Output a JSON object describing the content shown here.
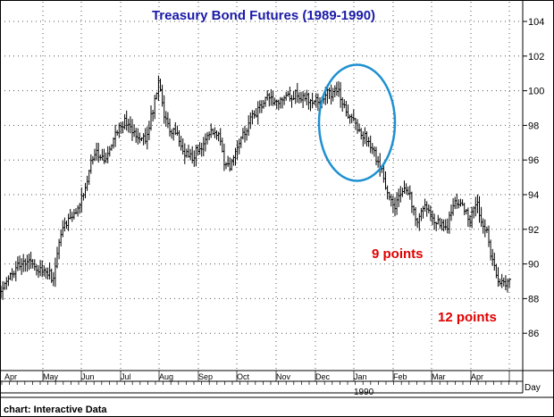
{
  "chart_data": {
    "type": "ohlc",
    "title": "Treasury Bond Futures (1989-1990)",
    "source_label": "chart: Interactive Data",
    "y_axis_unit_label": "Day",
    "ylim": [
      84,
      105
    ],
    "y_ticks": [
      86,
      88,
      90,
      92,
      94,
      96,
      98,
      100,
      102,
      104
    ],
    "x_tick_labels": [
      "Apr",
      "May",
      "Jun",
      "Jul",
      "Aug",
      "Sep",
      "Oct",
      "Nov",
      "Dec",
      "Jan",
      "Feb",
      "Mar",
      "Apr"
    ],
    "year_marker": "1990",
    "grid": true,
    "grid_style": "dotted",
    "annotations": [
      {
        "text": "9 points",
        "color": "#e00000"
      },
      {
        "text": "12 points",
        "color": "#e00000"
      }
    ],
    "highlight": {
      "shape": "ellipse",
      "color": "#1e90d0",
      "x_range": [
        "Dec",
        "Jan"
      ],
      "y_range": [
        94.8,
        101.5
      ]
    },
    "series": [
      {
        "price_path": [
          [
            0,
            88.6
          ],
          [
            10,
            89.2
          ],
          [
            22,
            90.0
          ],
          [
            35,
            90.2
          ],
          [
            45,
            89.6
          ],
          [
            55,
            89.5
          ],
          [
            60,
            89.0
          ],
          [
            64,
            90.8
          ],
          [
            72,
            92.3
          ],
          [
            85,
            92.8
          ],
          [
            95,
            94.3
          ],
          [
            105,
            96.5
          ],
          [
            115,
            96.2
          ],
          [
            120,
            96.0
          ],
          [
            128,
            97.6
          ],
          [
            140,
            98.2
          ],
          [
            152,
            97.5
          ],
          [
            162,
            97.2
          ],
          [
            172,
            99.0
          ],
          [
            178,
            100.5
          ],
          [
            183,
            98.6
          ],
          [
            190,
            97.6
          ],
          [
            198,
            97.5
          ],
          [
            205,
            96.5
          ],
          [
            215,
            96.2
          ],
          [
            225,
            96.8
          ],
          [
            235,
            97.8
          ],
          [
            245,
            97.3
          ],
          [
            250,
            96.0
          ],
          [
            257,
            95.5
          ],
          [
            265,
            96.8
          ],
          [
            275,
            97.8
          ],
          [
            283,
            98.5
          ],
          [
            292,
            99.0
          ],
          [
            300,
            99.8
          ],
          [
            310,
            99.3
          ],
          [
            320,
            99.6
          ],
          [
            330,
            99.8
          ],
          [
            340,
            99.6
          ],
          [
            350,
            99.5
          ],
          [
            358,
            99.3
          ],
          [
            365,
            99.8
          ],
          [
            372,
            99.9
          ],
          [
            378,
            100.2
          ],
          [
            382,
            99.4
          ],
          [
            388,
            98.7
          ],
          [
            398,
            98.0
          ],
          [
            408,
            97.4
          ],
          [
            416,
            96.8
          ],
          [
            422,
            95.8
          ],
          [
            428,
            95.3
          ],
          [
            434,
            93.8
          ],
          [
            442,
            93.4
          ],
          [
            452,
            94.5
          ],
          [
            458,
            94.0
          ],
          [
            466,
            92.5
          ],
          [
            475,
            93.5
          ],
          [
            485,
            92.6
          ],
          [
            493,
            92.2
          ],
          [
            500,
            92.0
          ],
          [
            508,
            93.6
          ],
          [
            518,
            93.3
          ],
          [
            526,
            92.6
          ],
          [
            533,
            93.6
          ],
          [
            540,
            92.4
          ],
          [
            545,
            92.0
          ],
          [
            550,
            90.2
          ],
          [
            557,
            89.2
          ],
          [
            564,
            88.8
          ],
          [
            570,
            88.9
          ]
        ]
      }
    ]
  }
}
